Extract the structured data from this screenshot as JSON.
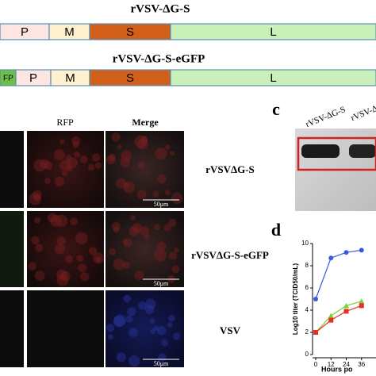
{
  "panel_a": {
    "constructs": [
      {
        "title": "rVSV-ΔG-S",
        "segments": [
          "P",
          "M",
          "S",
          "L"
        ]
      },
      {
        "title": "rVSV-ΔG-S-eGFP",
        "segments": [
          "FP",
          "P",
          "M",
          "S",
          "L"
        ]
      }
    ]
  },
  "panel_b": {
    "columns": [
      "RFP",
      "Merge"
    ],
    "rows": [
      "rVSVΔG-S",
      "rVSVΔG-S-eGFP",
      "VSV"
    ],
    "scale_bar": "50μm"
  },
  "panel_c": {
    "label": "c",
    "lanes": [
      "rVSV-ΔG-S",
      "rVSV-Δ"
    ]
  },
  "chart_data": {
    "type": "line",
    "label": "d",
    "x_label": "Hours po",
    "y_label": "Log10 titer (TCID50/mL)",
    "x": [
      0,
      12,
      24,
      36
    ],
    "xlim": [
      0,
      48
    ],
    "xticks": [
      0,
      12,
      24,
      36
    ],
    "ylim": [
      0,
      10
    ],
    "yticks": [
      0,
      2,
      4,
      6,
      8,
      10
    ],
    "series": [
      {
        "color": "#3b5bdb",
        "values": [
          5.0,
          8.7,
          9.2,
          9.4
        ]
      },
      {
        "color": "#7ccf35",
        "values": [
          2.0,
          3.5,
          4.4,
          4.8
        ]
      },
      {
        "color": "#e53125",
        "values": [
          2.0,
          3.1,
          3.9,
          4.4
        ]
      }
    ]
  }
}
